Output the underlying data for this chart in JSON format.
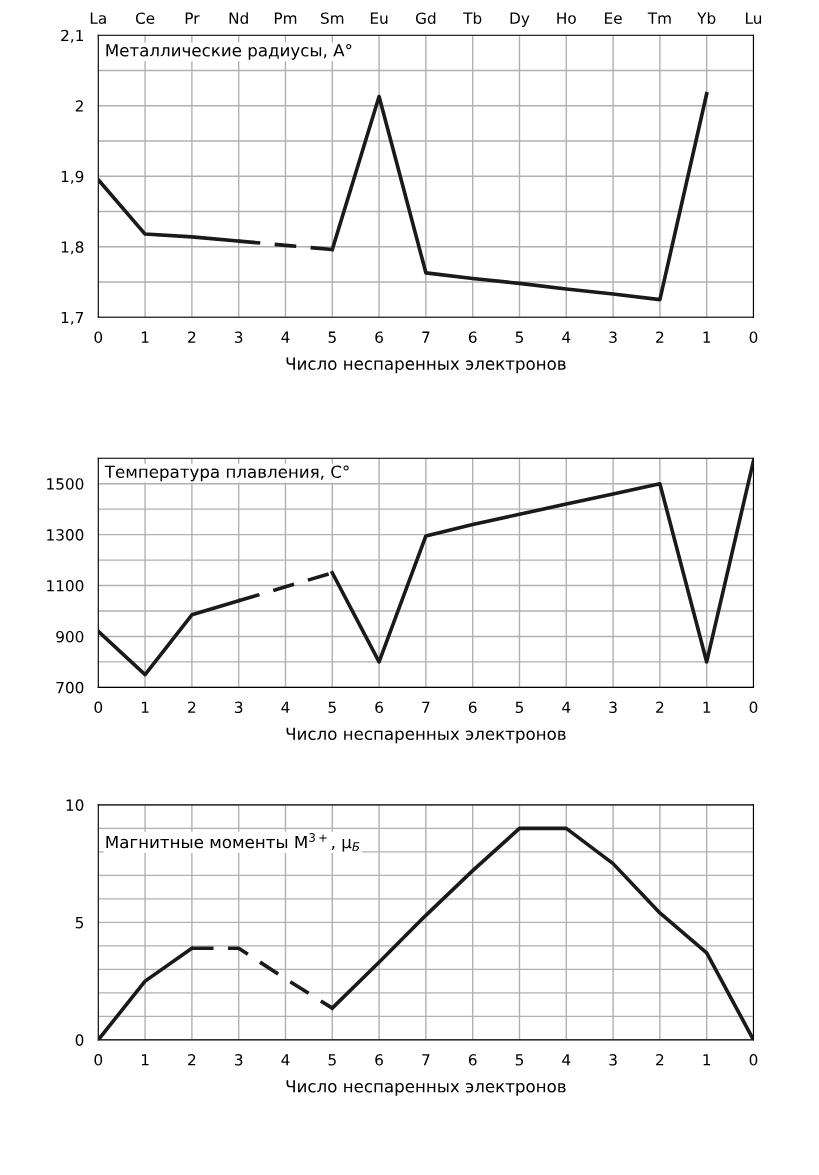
{
  "chart_data": [
    {
      "type": "line",
      "annotations": [
        "Металлические радиусы, A°",
        "La",
        "Ce",
        "Pr",
        "Nd",
        "Pm",
        "Sm",
        "Eu",
        "Gd",
        "Tb",
        "Dy",
        "Ho",
        "Ee",
        "Tm",
        "Yb",
        "Lu"
      ],
      "xlabel": "Число неспаренных электронов",
      "categories": [
        "0",
        "1",
        "2",
        "3",
        "4",
        "5",
        "6",
        "7",
        "6",
        "5",
        "4",
        "3",
        "2",
        "1",
        "0"
      ],
      "ylim": [
        1.7,
        2.1
      ],
      "yticks": [
        {
          "value": 1.7,
          "label": "1,7"
        },
        {
          "value": 1.75,
          "label": null
        },
        {
          "value": 1.8,
          "label": "1,8"
        },
        {
          "value": 1.85,
          "label": null
        },
        {
          "value": 1.9,
          "label": "1,9"
        },
        {
          "value": 1.95,
          "label": null
        },
        {
          "value": 2,
          "label": "2"
        },
        {
          "value": 2.05,
          "label": null
        },
        {
          "value": 2.1,
          "label": "2,1"
        }
      ],
      "grid": true,
      "series": [
        {
          "color": "#1a1a1a",
          "line_style": "solid",
          "values": [
            1.895,
            1.818,
            1.814,
            1.808,
            null,
            null,
            null,
            null,
            null,
            null,
            null,
            null,
            null,
            null,
            null
          ]
        },
        {
          "color": "#1a1a1a",
          "line_style": "dashed",
          "values": [
            null,
            null,
            null,
            1.808,
            1.802,
            1.796,
            null,
            null,
            null,
            null,
            null,
            null,
            null,
            null,
            null
          ]
        },
        {
          "color": "#1a1a1a",
          "line_style": "solid",
          "values": [
            null,
            null,
            null,
            null,
            null,
            1.796,
            2.013,
            1.763,
            1.755,
            1.748,
            1.74,
            1.733,
            1.725,
            2.017,
            null
          ]
        }
      ]
    },
    {
      "type": "line",
      "annotations": [
        "Температура плавления, C°"
      ],
      "xlabel": "Число неспаренных электронов",
      "categories": [
        "0",
        "1",
        "2",
        "3",
        "4",
        "5",
        "6",
        "7",
        "6",
        "5",
        "4",
        "3",
        "2",
        "1",
        "0"
      ],
      "ylim": [
        700,
        1600
      ],
      "yticks": [
        700,
        {
          "value": 800,
          "label": null
        },
        900,
        {
          "value": 1000,
          "label": null
        },
        1100,
        {
          "value": 1200,
          "label": null
        },
        1300,
        {
          "value": 1400,
          "label": null
        },
        1500,
        {
          "value": 1600,
          "label": null
        }
      ],
      "grid": true,
      "series": [
        {
          "color": "#1a1a1a",
          "line_style": "solid",
          "values": [
            920,
            750,
            985,
            1040,
            null,
            null,
            null,
            null,
            null,
            null,
            null,
            null,
            null,
            null,
            null
          ]
        },
        {
          "color": "#1a1a1a",
          "line_style": "dashed",
          "values": [
            null,
            null,
            null,
            1040,
            1095,
            1150,
            null,
            null,
            null,
            null,
            null,
            null,
            null,
            null,
            null
          ]
        },
        {
          "color": "#1a1a1a",
          "line_style": "solid",
          "values": [
            null,
            null,
            null,
            null,
            null,
            1150,
            800,
            1295,
            1340,
            1380,
            1420,
            1460,
            1500,
            800,
            1590
          ]
        }
      ]
    },
    {
      "type": "line",
      "annotations": [
        "Магнитные моменты M$^{3+}$, μ$_{Б}$"
      ],
      "xlabel": "Число неспаренных электронов",
      "categories": [
        "0",
        "1",
        "2",
        "3",
        "4",
        "5",
        "6",
        "7",
        "6",
        "5",
        "4",
        "3",
        "2",
        "1",
        "0"
      ],
      "ylim": [
        0,
        10
      ],
      "yticks": [
        0,
        {
          "value": 1,
          "label": null
        },
        {
          "value": 2,
          "label": null
        },
        {
          "value": 3,
          "label": null
        },
        {
          "value": 4,
          "label": null
        },
        5,
        {
          "value": 6,
          "label": null
        },
        {
          "value": 7,
          "label": null
        },
        {
          "value": 8,
          "label": null
        },
        {
          "value": 9,
          "label": null
        },
        10
      ],
      "grid": true,
      "series": [
        {
          "color": "#1a1a1a",
          "line_style": "solid",
          "values": [
            0,
            2.5,
            3.9,
            null,
            null,
            null,
            null,
            null,
            null,
            null,
            null,
            null,
            null,
            null,
            null
          ]
        },
        {
          "color": "#1a1a1a",
          "line_style": "dashed",
          "values": [
            null,
            null,
            3.9,
            3.9,
            2.6,
            1.35,
            null,
            null,
            null,
            null,
            null,
            null,
            null,
            null,
            null
          ]
        },
        {
          "color": "#1a1a1a",
          "line_style": "solid",
          "values": [
            null,
            null,
            null,
            null,
            null,
            1.35,
            3.3,
            5.3,
            7.2,
            9.0,
            9.0,
            7.5,
            5.4,
            3.7,
            0
          ]
        }
      ]
    }
  ]
}
